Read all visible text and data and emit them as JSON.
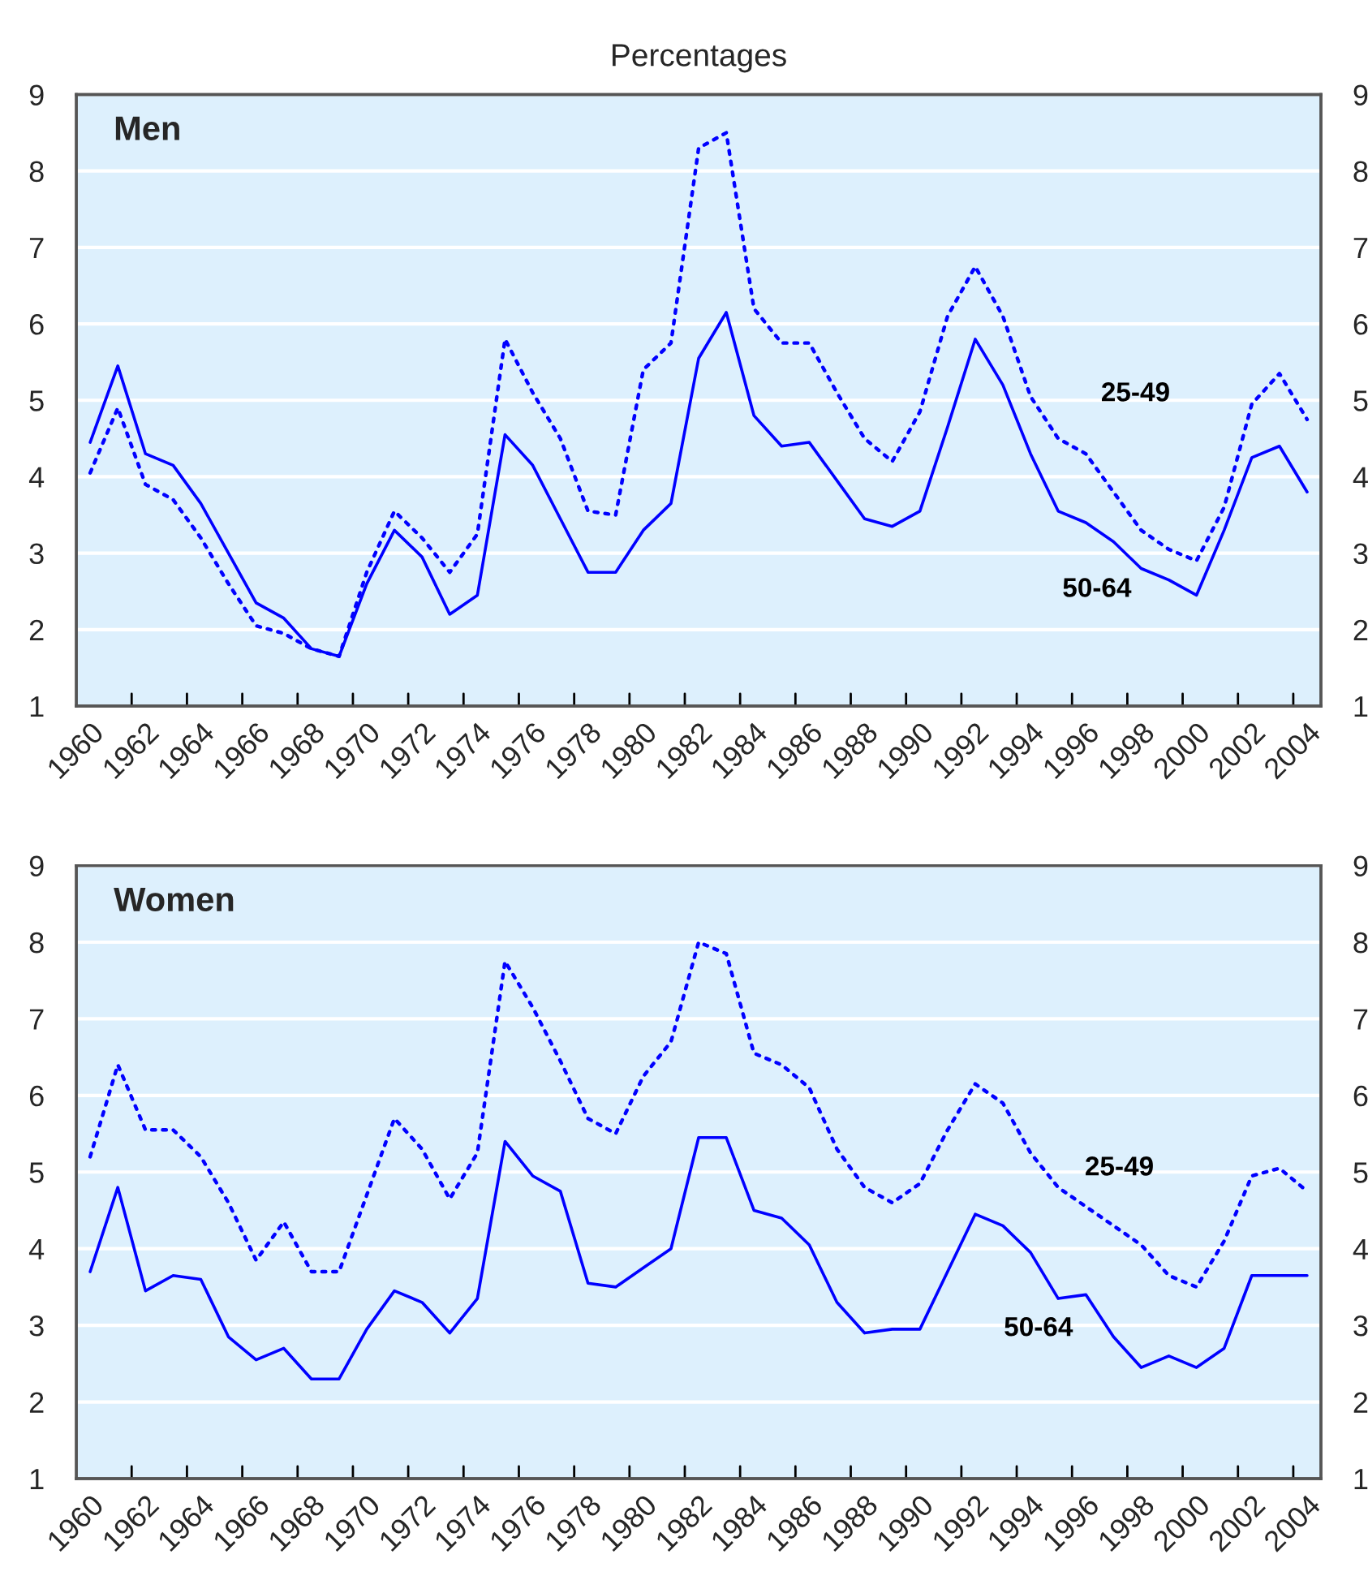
{
  "chart_data": [
    {
      "type": "line",
      "title": "Men",
      "annotations": [
        "Percentages"
      ],
      "categories": [
        "1960",
        null,
        "1962",
        null,
        "1964",
        null,
        "1966",
        null,
        "1968",
        null,
        "1970",
        null,
        "1972",
        null,
        "1974",
        null,
        "1976",
        null,
        "1978",
        null,
        "1980",
        null,
        "1982",
        null,
        "1984",
        null,
        "1986",
        null,
        "1988",
        null,
        "1990",
        null,
        "1992",
        null,
        "1994",
        null,
        "1996",
        null,
        "1998",
        null,
        "2000",
        null,
        "2002",
        null,
        "2004"
      ],
      "series": [
        {
          "name": "25-49",
          "color": "#0000ff",
          "line_style": "dotted",
          "values": [
            4.05,
            4.9,
            3.9,
            3.7,
            3.2,
            2.6,
            2.05,
            1.95,
            1.75,
            1.65,
            2.75,
            3.55,
            3.2,
            2.75,
            3.25,
            5.8,
            5.1,
            4.5,
            3.55,
            3.5,
            5.4,
            5.75,
            8.3,
            8.5,
            6.2,
            5.75,
            5.75,
            5.1,
            4.5,
            4.2,
            4.85,
            6.1,
            6.75,
            6.1,
            5.05,
            4.5,
            4.3,
            3.8,
            3.3,
            3.05,
            2.9,
            3.6,
            4.95,
            5.35,
            4.75
          ]
        },
        {
          "name": "50-64",
          "color": "#0000ff",
          "line_style": "solid",
          "values": [
            4.45,
            5.45,
            4.3,
            4.15,
            3.65,
            3.0,
            2.35,
            2.15,
            1.75,
            1.65,
            2.6,
            3.3,
            2.95,
            2.2,
            2.45,
            4.55,
            4.15,
            3.45,
            2.75,
            2.75,
            3.3,
            3.65,
            5.55,
            6.15,
            4.8,
            4.4,
            4.45,
            3.95,
            3.45,
            3.35,
            3.55,
            4.65,
            5.8,
            5.2,
            4.3,
            3.55,
            3.4,
            3.15,
            2.8,
            2.65,
            2.45,
            3.3,
            4.25,
            4.4,
            3.8
          ]
        }
      ],
      "ylim": [
        1,
        9
      ],
      "yticks": [
        1,
        2,
        3,
        4,
        5,
        6,
        7,
        8,
        9
      ],
      "y2lim": [
        1,
        9
      ],
      "y2ticks": [
        1,
        2,
        3,
        4,
        5,
        6,
        7,
        8,
        9
      ],
      "grid": "y",
      "legend": false
    },
    {
      "type": "line",
      "title": "Women",
      "categories": [
        "1960",
        null,
        "1962",
        null,
        "1964",
        null,
        "1966",
        null,
        "1968",
        null,
        "1970",
        null,
        "1972",
        null,
        "1974",
        null,
        "1976",
        null,
        "1978",
        null,
        "1980",
        null,
        "1982",
        null,
        "1984",
        null,
        "1986",
        null,
        "1988",
        null,
        "1990",
        null,
        "1992",
        null,
        "1994",
        null,
        "1996",
        null,
        "1998",
        null,
        "2000",
        null,
        "2002",
        null,
        "2004"
      ],
      "series": [
        {
          "name": "25-49",
          "color": "#0000ff",
          "line_style": "dotted",
          "values": [
            5.2,
            6.4,
            5.55,
            5.55,
            5.2,
            4.6,
            3.85,
            4.35,
            3.7,
            3.7,
            4.7,
            5.7,
            5.3,
            4.65,
            5.25,
            7.75,
            7.15,
            6.45,
            5.7,
            5.5,
            6.25,
            6.7,
            8.0,
            7.85,
            6.55,
            6.4,
            6.1,
            5.3,
            4.8,
            4.6,
            4.85,
            5.55,
            6.15,
            5.9,
            5.25,
            4.8,
            4.55,
            4.3,
            4.05,
            3.65,
            3.5,
            4.1,
            4.95,
            5.05,
            4.75
          ]
        },
        {
          "name": "50-64",
          "color": "#0000ff",
          "line_style": "solid",
          "values": [
            3.7,
            4.8,
            3.45,
            3.65,
            3.6,
            2.85,
            2.55,
            2.7,
            2.3,
            2.3,
            2.95,
            3.45,
            3.3,
            2.9,
            3.35,
            5.4,
            4.95,
            4.75,
            3.55,
            3.5,
            3.75,
            4.0,
            5.45,
            5.45,
            4.5,
            4.4,
            4.05,
            3.3,
            2.9,
            2.95,
            2.95,
            3.7,
            4.45,
            4.3,
            3.95,
            3.35,
            3.4,
            2.85,
            2.45,
            2.6,
            2.45,
            2.7,
            3.65,
            3.65,
            3.65
          ]
        }
      ],
      "ylim": [
        1,
        9
      ],
      "yticks": [
        1,
        2,
        3,
        4,
        5,
        6,
        7,
        8,
        9
      ],
      "y2lim": [
        1,
        9
      ],
      "y2ticks": [
        1,
        2,
        3,
        4,
        5,
        6,
        7,
        8,
        9
      ],
      "grid": "y",
      "legend": false
    }
  ]
}
